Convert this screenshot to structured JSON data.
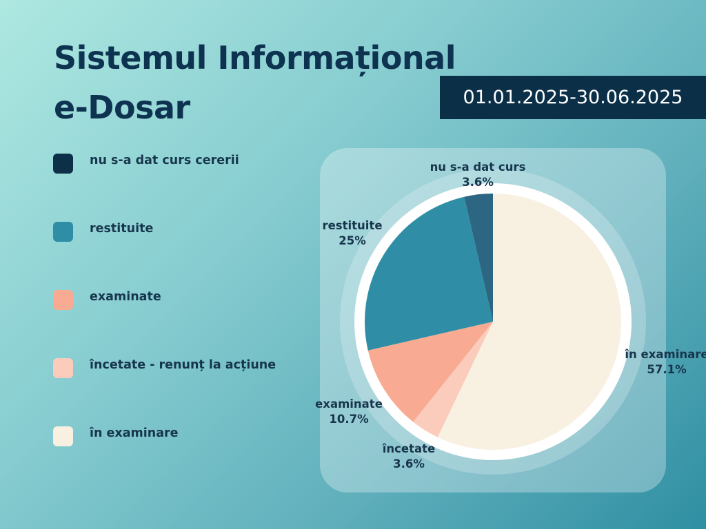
{
  "title": {
    "line1": "Sistemul Informațional",
    "line2": "e-Dosar"
  },
  "period": "01.01.2025-30.06.2025",
  "legend": [
    {
      "label": "nu s-a dat curs cererii",
      "color": "#0d2f48"
    },
    {
      "label": "restituite",
      "color": "#2f8ea5"
    },
    {
      "label": "examinate",
      "color": "#f8aa92"
    },
    {
      "label": "încetate - renunț la acțiune",
      "color": "#fbcbbc"
    },
    {
      "label": "în examinare",
      "color": "#f8f1e2"
    }
  ],
  "chart_data": {
    "type": "pie",
    "slices": [
      {
        "label": "în examinare",
        "pct_text": "57.1%",
        "value": 57.1,
        "color": "#f8f1e2"
      },
      {
        "label": "încetate",
        "pct_text": "3.6%",
        "value": 3.6,
        "color": "#fbcbbc"
      },
      {
        "label": "examinate",
        "pct_text": "10.7%",
        "value": 10.7,
        "color": "#f8aa92"
      },
      {
        "label": "restituite",
        "pct_text": "25%",
        "value": 25,
        "color": "#2f8ea5"
      },
      {
        "label": "nu s-a dat curs",
        "pct_text": "3.6%",
        "value": 3.6,
        "color": "#2c6683"
      }
    ],
    "start": "12 o'clock",
    "direction": "clockwise"
  }
}
